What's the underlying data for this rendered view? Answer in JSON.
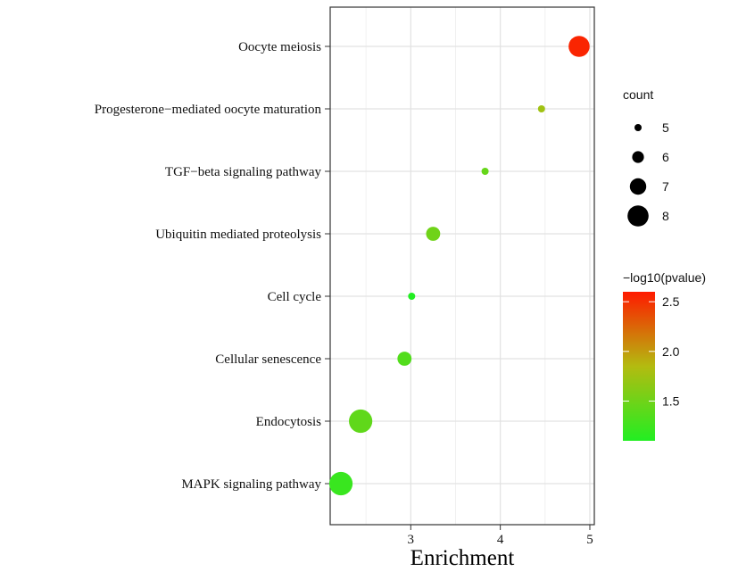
{
  "chart_data": {
    "type": "scatter",
    "xlabel": "Enrichment",
    "xlim": [
      2.1,
      5.05
    ],
    "x_ticks": [
      3,
      4,
      5
    ],
    "grid": true,
    "categories": [
      "Oocyte meiosis",
      "Progesterone−mediated oocyte maturation",
      "TGF−beta signaling pathway",
      "Ubiquitin mediated proteolysis",
      "Cell cycle",
      "Cellular senescence",
      "Endocytosis",
      "MAPK signaling pathway"
    ],
    "points": [
      {
        "category": "Oocyte meiosis",
        "enrichment": 4.88,
        "count": 8,
        "neg_log10_pvalue": 2.55
      },
      {
        "category": "Progesterone−mediated oocyte maturation",
        "enrichment": 4.46,
        "count": 5,
        "neg_log10_pvalue": 1.75
      },
      {
        "category": "TGF−beta signaling pathway",
        "enrichment": 3.83,
        "count": 5,
        "neg_log10_pvalue": 1.45
      },
      {
        "category": "Ubiquitin mediated proteolysis",
        "enrichment": 3.25,
        "count": 6.5,
        "neg_log10_pvalue": 1.5
      },
      {
        "category": "Cell cycle",
        "enrichment": 3.01,
        "count": 5,
        "neg_log10_pvalue": 1.1
      },
      {
        "category": "Cellular senescence",
        "enrichment": 2.93,
        "count": 6.5,
        "neg_log10_pvalue": 1.35
      },
      {
        "category": "Endocytosis",
        "enrichment": 2.44,
        "count": 8.5,
        "neg_log10_pvalue": 1.42
      },
      {
        "category": "MAPK signaling pathway",
        "enrichment": 2.22,
        "count": 8.5,
        "neg_log10_pvalue": 1.22
      }
    ],
    "size_legend": {
      "title": "count",
      "values": [
        5,
        6,
        7,
        8
      ],
      "labels": [
        "5",
        "6",
        "7",
        "8"
      ]
    },
    "color_legend": {
      "title": "−log10(pvalue)",
      "range": [
        1.1,
        2.6
      ],
      "ticks": [
        1.5,
        2.0,
        2.5
      ],
      "tick_labels": [
        "1.5",
        "2.0",
        "2.5"
      ],
      "low_color": "#22ee22",
      "high_color": "#ff1a00"
    },
    "legend_position": "right"
  }
}
